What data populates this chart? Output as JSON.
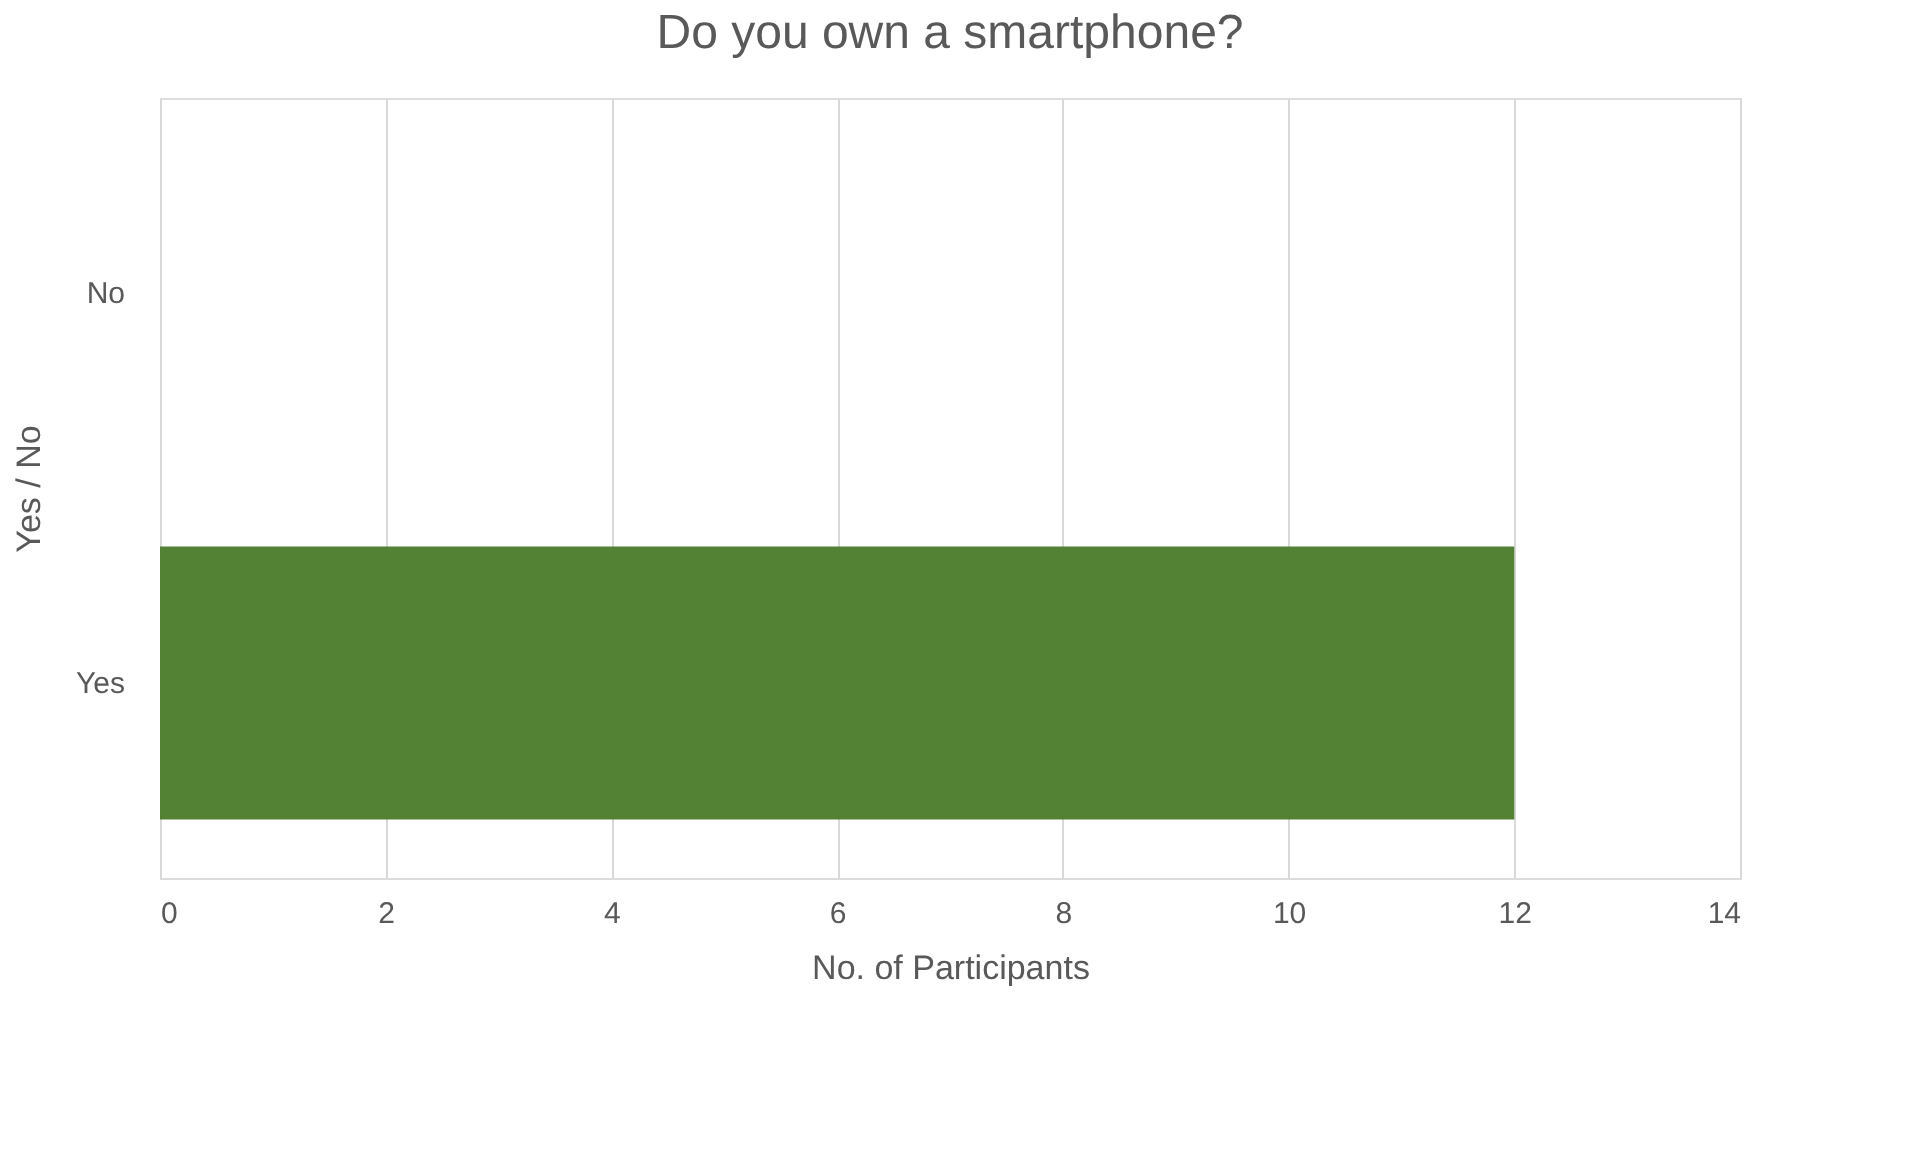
{
  "chart_data": {
    "type": "bar",
    "orientation": "horizontal",
    "title": "Do you own a smartphone?",
    "xlabel": "No. of Participants",
    "ylabel": "Yes / No",
    "categories": [
      "No",
      "Yes"
    ],
    "series": [
      {
        "color": "#548235",
        "values": [
          0,
          12
        ]
      }
    ],
    "xlim": [
      0,
      14
    ],
    "xticks": [
      0,
      2,
      4,
      6,
      8,
      10,
      12,
      14
    ],
    "grid": "x",
    "legend": false
  }
}
